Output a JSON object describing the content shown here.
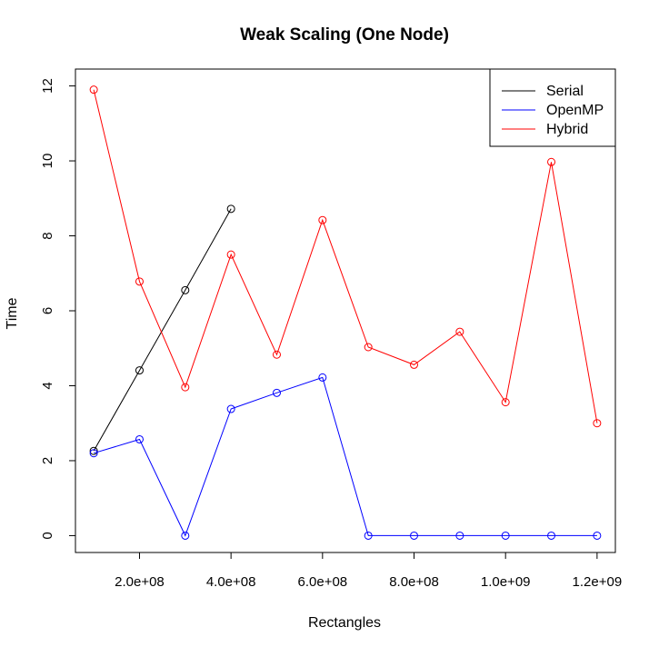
{
  "chart_data": {
    "type": "line",
    "title": "Weak Scaling (One Node)",
    "xlabel": "Rectangles",
    "ylabel": "Time",
    "xlim": [
      60000000,
      1240000000
    ],
    "ylim": [
      -0.45,
      12.45
    ],
    "x_ticks": [
      {
        "value": 200000000,
        "label": "2.0e+08"
      },
      {
        "value": 400000000,
        "label": "4.0e+08"
      },
      {
        "value": 600000000,
        "label": "6.0e+08"
      },
      {
        "value": 800000000,
        "label": "8.0e+08"
      },
      {
        "value": 1000000000,
        "label": "1.0e+09"
      },
      {
        "value": 1200000000,
        "label": "1.2e+09"
      }
    ],
    "y_ticks": [
      {
        "value": 0,
        "label": "0"
      },
      {
        "value": 2,
        "label": "2"
      },
      {
        "value": 4,
        "label": "4"
      },
      {
        "value": 6,
        "label": "6"
      },
      {
        "value": 8,
        "label": "8"
      },
      {
        "value": 10,
        "label": "10"
      },
      {
        "value": 12,
        "label": "12"
      }
    ],
    "grid": false,
    "legend_position": "top-right",
    "series": [
      {
        "name": "Serial",
        "color": "#000000",
        "x": [
          100000000,
          200000000,
          300000000,
          400000000
        ],
        "y": [
          2.26,
          4.41,
          6.55,
          8.72
        ]
      },
      {
        "name": "OpenMP",
        "color": "#0000ff",
        "x": [
          100000000,
          200000000,
          300000000,
          400000000,
          500000000,
          600000000,
          700000000,
          800000000,
          900000000,
          1000000000,
          1100000000,
          1200000000
        ],
        "y": [
          2.2,
          2.57,
          0.0,
          3.38,
          3.81,
          4.22,
          0.0,
          0.0,
          0.0,
          0.0,
          0.0,
          0.0
        ]
      },
      {
        "name": "Hybrid",
        "color": "#ff0000",
        "x": [
          100000000,
          200000000,
          300000000,
          400000000,
          500000000,
          600000000,
          700000000,
          800000000,
          900000000,
          1000000000,
          1100000000,
          1200000000
        ],
        "y": [
          11.9,
          6.78,
          3.96,
          7.5,
          4.83,
          8.42,
          5.03,
          4.56,
          5.44,
          3.56,
          9.97,
          3.0
        ]
      }
    ]
  }
}
